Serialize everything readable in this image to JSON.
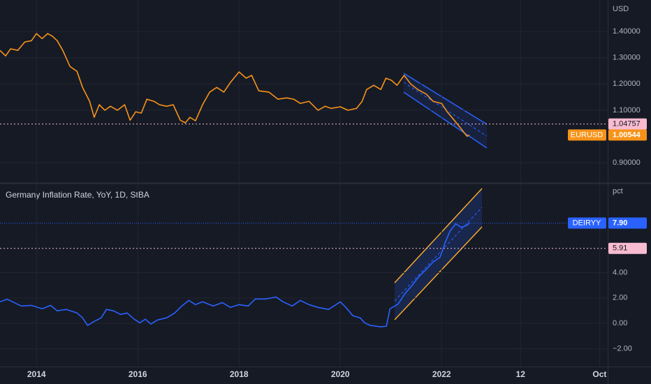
{
  "chart_data": [
    {
      "type": "line",
      "axis_label": "USD",
      "xlim": [
        2013.28,
        2025.28
      ],
      "ylim": [
        0.823,
        1.52
      ],
      "yticks": [
        {
          "value": 0.9,
          "label": "0.90000"
        },
        {
          "value": 1.1,
          "label": "1.10000"
        },
        {
          "value": 1.2,
          "label": "1.20000"
        },
        {
          "value": 1.3,
          "label": "1.30000"
        },
        {
          "value": 1.4,
          "label": "1.40000"
        }
      ],
      "grid": true,
      "series": [
        {
          "name": "EURUSD",
          "color": "#f7931a",
          "x": [
            2013.28,
            2013.39,
            2013.49,
            2013.63,
            2013.77,
            2013.9,
            2014.0,
            2014.11,
            2014.22,
            2014.32,
            2014.41,
            2014.52,
            2014.66,
            2014.8,
            2014.91,
            2015.05,
            2015.14,
            2015.24,
            2015.35,
            2015.46,
            2015.6,
            2015.74,
            2015.85,
            2015.96,
            2016.07,
            2016.18,
            2016.32,
            2016.43,
            2016.57,
            2016.7,
            2016.84,
            2016.94,
            2017.03,
            2017.14,
            2017.28,
            2017.42,
            2017.56,
            2017.7,
            2017.83,
            2018.0,
            2018.14,
            2018.25,
            2018.39,
            2018.59,
            2018.77,
            2018.94,
            2019.08,
            2019.21,
            2019.38,
            2019.56,
            2019.7,
            2019.82,
            2020.0,
            2020.15,
            2020.32,
            2020.43,
            2020.52,
            2020.66,
            2020.8,
            2020.9,
            2021.01,
            2021.12,
            2021.26,
            2021.39,
            2021.53,
            2021.7,
            2021.83,
            2022.0,
            2022.11,
            2022.25,
            2022.39,
            2022.5,
            2022.55
          ],
          "values": [
            1.328,
            1.307,
            1.334,
            1.328,
            1.36,
            1.365,
            1.392,
            1.373,
            1.392,
            1.381,
            1.365,
            1.328,
            1.267,
            1.248,
            1.187,
            1.134,
            1.073,
            1.121,
            1.1,
            1.115,
            1.1,
            1.121,
            1.062,
            1.094,
            1.089,
            1.142,
            1.134,
            1.121,
            1.115,
            1.121,
            1.062,
            1.052,
            1.073,
            1.06,
            1.121,
            1.169,
            1.187,
            1.169,
            1.206,
            1.246,
            1.222,
            1.233,
            1.174,
            1.169,
            1.142,
            1.147,
            1.142,
            1.126,
            1.134,
            1.1,
            1.115,
            1.107,
            1.113,
            1.1,
            1.107,
            1.134,
            1.179,
            1.195,
            1.179,
            1.222,
            1.214,
            1.195,
            1.233,
            1.2,
            1.179,
            1.161,
            1.134,
            1.126,
            1.094,
            1.062,
            1.028,
            1.001,
            1.005
          ],
          "last_value_label": {
            "value": 1.00544,
            "label": "1.00544"
          }
        }
      ],
      "price_lines": [
        {
          "value": 1.04757,
          "label": "1.04757",
          "color": "#f8bbd0"
        }
      ]
    },
    {
      "type": "line",
      "title": "Germany Inflation Rate, YoY, 1D, StBA",
      "axis_label": "pct",
      "xlim": [
        2013.28,
        2025.28
      ],
      "ylim": [
        -3.4,
        11.01
      ],
      "xticks": [
        2014,
        2016,
        2018,
        2020,
        2022,
        {
          "value": 2023.56,
          "label": "12"
        },
        {
          "value": 2025.12,
          "label": "Oct"
        }
      ],
      "yticks": [
        {
          "value": -2,
          "label": "−2.00"
        },
        {
          "value": 0,
          "label": "0.00"
        },
        {
          "value": 2,
          "label": "2.00"
        },
        {
          "value": 4,
          "label": "4.00"
        }
      ],
      "grid": true,
      "series": [
        {
          "name": "DEIRYY",
          "color": "#2962ff",
          "x": [
            2013.28,
            2013.42,
            2013.53,
            2013.7,
            2013.9,
            2014.11,
            2014.28,
            2014.41,
            2014.59,
            2014.8,
            2014.91,
            2015.01,
            2015.14,
            2015.28,
            2015.38,
            2015.52,
            2015.66,
            2015.79,
            2015.93,
            2016.04,
            2016.15,
            2016.26,
            2016.39,
            2016.57,
            2016.73,
            2016.87,
            2017.01,
            2017.14,
            2017.28,
            2017.49,
            2017.67,
            2017.83,
            2018.0,
            2018.18,
            2018.32,
            2018.52,
            2018.73,
            2018.87,
            2019.05,
            2019.21,
            2019.38,
            2019.56,
            2019.77,
            2020.0,
            2020.11,
            2020.25,
            2020.39,
            2020.48,
            2020.59,
            2020.8,
            2020.91,
            2020.98,
            2021.14,
            2021.28,
            2021.42,
            2021.56,
            2021.7,
            2021.83,
            2021.97,
            2022.08,
            2022.17,
            2022.28,
            2022.39,
            2022.5,
            2022.55
          ],
          "values": [
            1.7,
            1.9,
            1.7,
            1.37,
            1.42,
            1.15,
            1.42,
            0.99,
            1.1,
            0.82,
            0.44,
            -0.16,
            0.16,
            0.44,
            1.1,
            0.99,
            0.71,
            0.82,
            0.33,
            0.05,
            0.33,
            -0.05,
            0.27,
            0.44,
            0.82,
            1.37,
            1.81,
            1.48,
            1.7,
            1.37,
            1.64,
            1.26,
            1.48,
            1.37,
            1.92,
            1.92,
            2.08,
            1.7,
            1.37,
            1.81,
            1.48,
            1.26,
            1.1,
            1.7,
            1.26,
            0.6,
            0.44,
            0.05,
            -0.16,
            -0.27,
            -0.22,
            1.15,
            1.53,
            2.36,
            3.01,
            3.73,
            4.27,
            4.82,
            5.21,
            6.47,
            7.29,
            7.84,
            7.56,
            7.73,
            7.9
          ],
          "last_value_label": {
            "value": 7.9,
            "label": "7.90"
          }
        }
      ],
      "price_lines": [
        {
          "value": 5.91,
          "label": "5.91",
          "color": "#f8bbd0"
        }
      ]
    }
  ]
}
